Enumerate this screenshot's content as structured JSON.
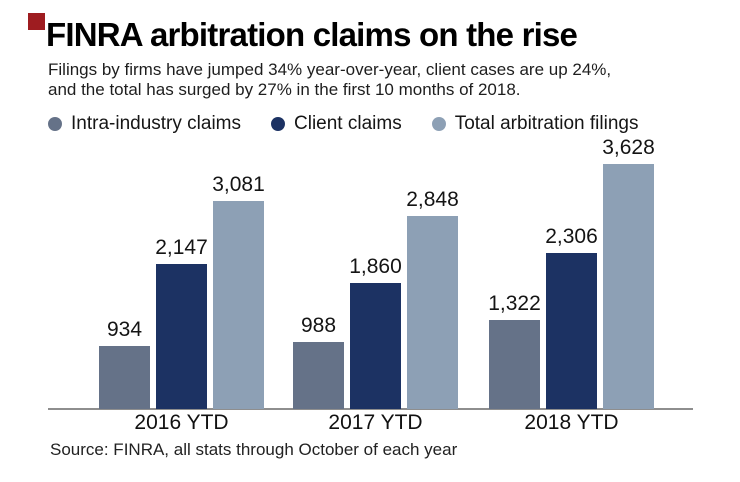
{
  "header": {
    "title": "FINRA arbitration claims on the rise",
    "subtitle_line1": "Filings by firms have jumped 34% year-over-year, client cases are up 24%,",
    "subtitle_line2": "and the total has surged by 27% in the first 10 months of 2018."
  },
  "footer": {
    "source": "Source: FINRA, all stats through October of each year"
  },
  "brand": {
    "logo_color": "#9e1c20"
  },
  "chart_data": {
    "type": "bar",
    "title": "FINRA arbitration claims on the rise",
    "categories": [
      "2016 YTD",
      "2017 YTD",
      "2018 YTD"
    ],
    "series": [
      {
        "name": "Intra-industry claims",
        "color": "#657288",
        "values": [
          934,
          988,
          1322
        ],
        "labels": [
          "934",
          "988",
          "1,322"
        ]
      },
      {
        "name": "Client claims",
        "color": "#1c3263",
        "values": [
          2147,
          1860,
          2306
        ],
        "labels": [
          "2,147",
          "1,860",
          "2,306"
        ]
      },
      {
        "name": "Total arbitration filings",
        "color": "#8da0b5",
        "values": [
          3081,
          2848,
          3628
        ],
        "labels": [
          "3,081",
          "2,848",
          "3,628"
        ]
      }
    ],
    "ylim": [
      0,
      3700
    ],
    "grid": false,
    "axis_line_color": "#8e8e8e",
    "legend_position": "top",
    "value_labels_shown": true
  }
}
